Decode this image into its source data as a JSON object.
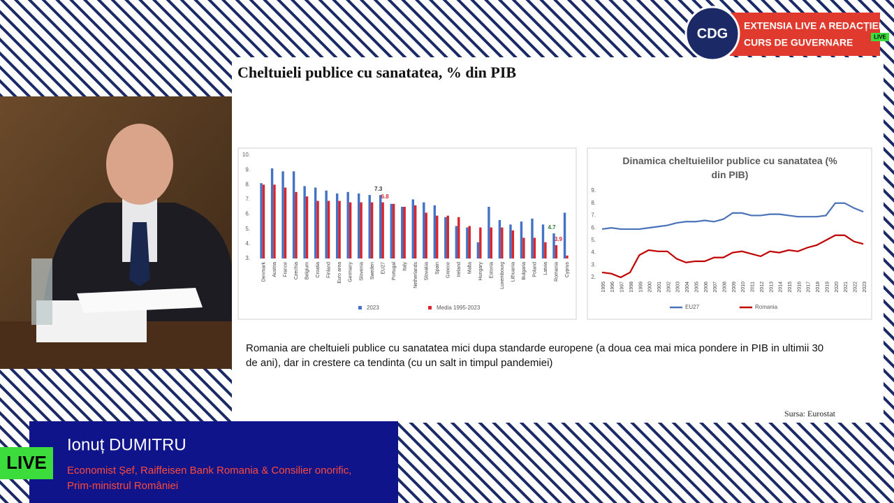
{
  "broadcast": {
    "logo": "CDG",
    "banner_line1": "EXTENSIA LIVE A REDACȚIEI",
    "banner_line2": "CURS DE GUVERNARE",
    "live_small": "LIVE"
  },
  "slide": {
    "title": "Cheltuieli publice cu sanatatea, % din PIB",
    "caption": "Romania are cheltuieli publice cu sanatatea mici dupa standarde europene (a doua cea mai mica pondere in PIB in ultimii 30 de ani), dar in crestere ca tendinta (cu un salt in timpul pandemiei)",
    "source": "Sursa: Eurostat"
  },
  "chart_data": [
    {
      "type": "bar",
      "categories": [
        "Denmark",
        "Austria",
        "France",
        "Czechia",
        "Belgium",
        "Croatia",
        "Finland",
        "Euro area",
        "Germany",
        "Slovenia",
        "Sweden",
        "EU27",
        "Portugal",
        "Italy",
        "Netherlands",
        "Slovakia",
        "Spain",
        "Greece",
        "Ireland",
        "Malta",
        "Hungary",
        "Estonia",
        "Luxembourg",
        "Lithuania",
        "Bulgaria",
        "Poland",
        "Latvia",
        "Romania",
        "Cyprus"
      ],
      "series": [
        {
          "name": "2023",
          "color": "#4472c4",
          "label_color": "#2e7d32",
          "values": [
            8.1,
            9.1,
            8.9,
            8.9,
            7.9,
            7.8,
            7.6,
            7.4,
            7.5,
            7.4,
            7.3,
            7.3,
            6.7,
            6.5,
            7.0,
            6.8,
            6.6,
            5.8,
            5.2,
            5.1,
            4.1,
            6.5,
            5.6,
            5.3,
            5.5,
            5.7,
            5.3,
            4.7,
            6.1
          ],
          "value_labels": [
            null,
            null,
            null,
            null,
            null,
            null,
            null,
            null,
            null,
            null,
            null,
            "7.3",
            null,
            null,
            null,
            null,
            null,
            null,
            null,
            null,
            null,
            null,
            null,
            null,
            null,
            null,
            null,
            "4.7",
            null
          ]
        },
        {
          "name": "Media 1995-2023",
          "color": "#d9262c",
          "label_color": "#d9262c",
          "values": [
            8.0,
            8.0,
            7.8,
            7.5,
            7.2,
            6.9,
            6.9,
            6.9,
            6.8,
            6.8,
            6.8,
            6.8,
            6.7,
            6.5,
            6.6,
            6.1,
            5.9,
            5.9,
            5.8,
            5.2,
            5.1,
            5.1,
            5.1,
            4.9,
            4.4,
            4.4,
            4.1,
            3.9,
            3.2
          ],
          "value_labels": [
            null,
            null,
            null,
            null,
            null,
            null,
            null,
            null,
            null,
            null,
            null,
            "6.8",
            null,
            null,
            null,
            null,
            null,
            null,
            null,
            null,
            null,
            null,
            null,
            null,
            null,
            null,
            null,
            "3.9",
            null
          ]
        }
      ],
      "ylim": [
        3,
        10
      ],
      "yticks": [
        {
          "value": 3,
          "label": "3."
        },
        {
          "value": 4,
          "label": "4."
        },
        {
          "value": 5,
          "label": "5."
        },
        {
          "value": 6,
          "label": "6."
        },
        {
          "value": 7,
          "label": "7."
        },
        {
          "value": 8,
          "label": "8."
        },
        {
          "value": 9,
          "label": "9."
        },
        {
          "value": 10,
          "label": "10."
        }
      ],
      "grid": false
    },
    {
      "type": "line",
      "title": "Dinamica cheltuielilor publice cu sanatatea (% din PIB)",
      "categories": [
        "1995",
        "1996",
        "1997",
        "1998",
        "1999",
        "2000",
        "2001",
        "2002",
        "2003",
        "2004",
        "2005",
        "2006",
        "2007",
        "2008",
        "2009",
        "2010",
        "2011",
        "2012",
        "2013",
        "2014",
        "2015",
        "2016",
        "2017",
        "2018",
        "2019",
        "2020",
        "2021",
        "2022",
        "2023"
      ],
      "series": [
        {
          "name": "EU27",
          "color": "#4a72b8",
          "values": [
            5.9,
            6.0,
            5.9,
            5.9,
            5.9,
            6.0,
            6.1,
            6.2,
            6.4,
            6.5,
            6.5,
            6.6,
            6.5,
            6.7,
            7.2,
            7.2,
            7.0,
            7.0,
            7.1,
            7.1,
            7.0,
            6.9,
            6.9,
            6.9,
            7.0,
            8.0,
            8.0,
            7.6,
            7.3
          ]
        },
        {
          "name": "Romania",
          "color": "#c00000",
          "values": [
            2.4,
            2.3,
            2.0,
            2.4,
            3.8,
            4.2,
            4.1,
            4.1,
            3.5,
            3.2,
            3.3,
            3.3,
            3.6,
            3.6,
            4.0,
            4.1,
            3.9,
            3.7,
            4.1,
            4.0,
            4.2,
            4.1,
            4.4,
            4.6,
            5.0,
            5.4,
            5.4,
            4.9,
            4.7
          ]
        }
      ],
      "ylim": [
        2,
        9
      ],
      "yticks": [
        {
          "value": 2,
          "label": "2."
        },
        {
          "value": 3,
          "label": "3."
        },
        {
          "value": 4,
          "label": "4."
        },
        {
          "value": 5,
          "label": "5."
        },
        {
          "value": 6,
          "label": "6."
        },
        {
          "value": 7,
          "label": "7."
        },
        {
          "value": 8,
          "label": "8."
        },
        {
          "value": 9,
          "label": "9."
        }
      ],
      "grid": false
    }
  ],
  "lower_third": {
    "name": "Ionuț DUMITRU",
    "role_line1": "Economist Șef, Raiffeisen Bank Romania & Consilier onorific,",
    "role_line2": "Prim-ministrul României",
    "live": "LIVE"
  }
}
